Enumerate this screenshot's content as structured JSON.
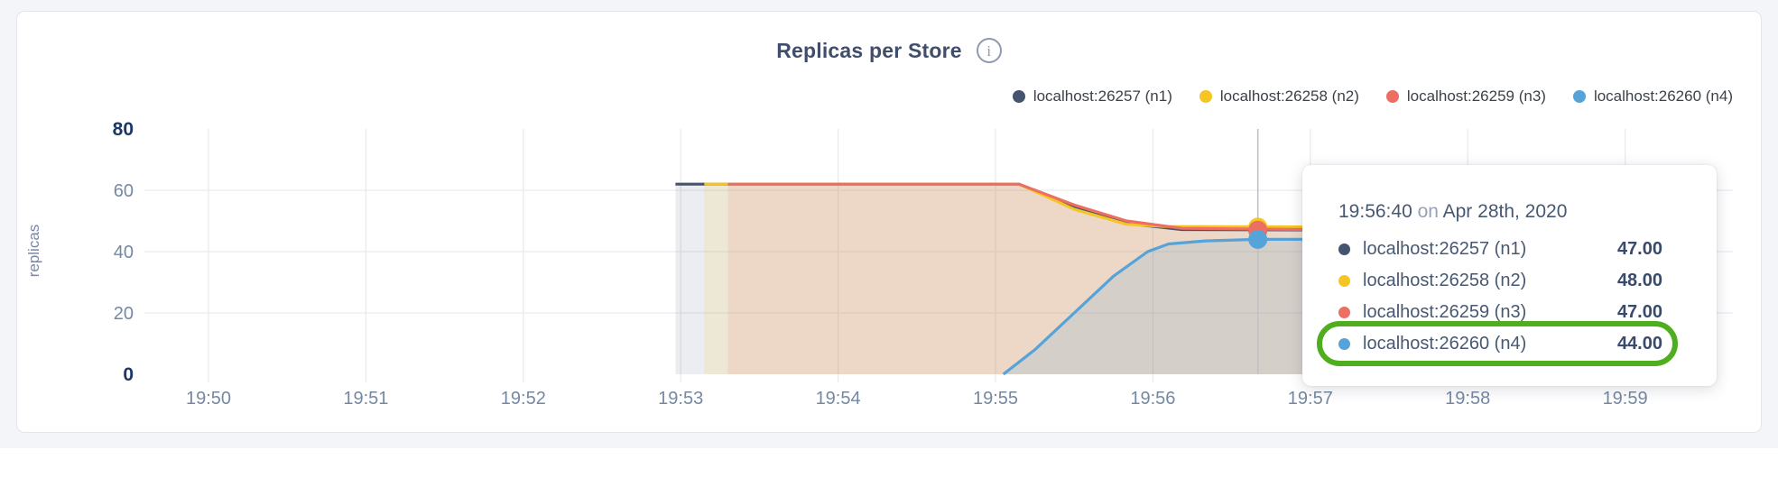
{
  "card": {
    "title": "Replicas per Store",
    "info_icon_glyph": "i"
  },
  "tooltip": {
    "time": "19:56:40",
    "conjunction": " on ",
    "date": "Apr 28th, 2020",
    "rows": [
      {
        "label": "localhost:26257 (n1)",
        "value": "47.00",
        "color": "#44536e"
      },
      {
        "label": "localhost:26258 (n2)",
        "value": "48.00",
        "color": "#f5c623"
      },
      {
        "label": "localhost:26259 (n3)",
        "value": "47.00",
        "color": "#ed6e62"
      },
      {
        "label": "localhost:26260 (n4)",
        "value": "44.00",
        "color": "#55a3d9"
      }
    ],
    "highlighted_row_index": 3,
    "highlight_color": "#4fae1e"
  },
  "chart_data": {
    "type": "area",
    "title": "Replicas per Store",
    "xlabel": "",
    "ylabel": "replicas",
    "ylim": [
      0,
      80
    ],
    "grid": true,
    "legend_position": "top-right",
    "x_unit": "seconds after 19:50:00",
    "x_ticks": [
      {
        "label": "19:50",
        "s": 0
      },
      {
        "label": "19:51",
        "s": 60
      },
      {
        "label": "19:52",
        "s": 120
      },
      {
        "label": "19:53",
        "s": 180
      },
      {
        "label": "19:54",
        "s": 240
      },
      {
        "label": "19:55",
        "s": 300
      },
      {
        "label": "19:56",
        "s": 360
      },
      {
        "label": "19:57",
        "s": 420
      },
      {
        "label": "19:58",
        "s": 480
      },
      {
        "label": "19:59",
        "s": 540
      }
    ],
    "y_ticks": [
      {
        "label": "0",
        "value": 0,
        "bold": true
      },
      {
        "label": "20",
        "value": 20,
        "bold": false
      },
      {
        "label": "40",
        "value": 40,
        "bold": false
      },
      {
        "label": "60",
        "value": 60,
        "bold": false
      },
      {
        "label": "80",
        "value": 80,
        "bold": true
      }
    ],
    "series": [
      {
        "name": "localhost:26257 (n1)",
        "color": "#44536e",
        "fill_opacity": 0.1,
        "points": [
          [
            178,
            62
          ],
          [
            309,
            62
          ],
          [
            330,
            54.5
          ],
          [
            350,
            49.2
          ],
          [
            371,
            47.2
          ],
          [
            443,
            47
          ]
        ]
      },
      {
        "name": "localhost:26258 (n2)",
        "color": "#f5c623",
        "fill_opacity": 0.13,
        "points": [
          [
            189,
            62
          ],
          [
            309,
            62
          ],
          [
            330,
            53.8
          ],
          [
            350,
            48.9
          ],
          [
            365,
            48.2
          ],
          [
            443,
            48
          ]
        ]
      },
      {
        "name": "localhost:26259 (n3)",
        "color": "#ed6e62",
        "fill_opacity": 0.13,
        "points": [
          [
            198,
            62
          ],
          [
            309,
            62
          ],
          [
            330,
            55.2
          ],
          [
            350,
            50
          ],
          [
            371,
            47.6
          ],
          [
            443,
            47
          ]
        ]
      },
      {
        "name": "localhost:26260 (n4)",
        "color": "#55a3d9",
        "fill_opacity": 0.16,
        "points": [
          [
            303,
            0
          ],
          [
            315,
            8
          ],
          [
            330,
            20
          ],
          [
            345,
            32
          ],
          [
            358,
            40
          ],
          [
            366,
            42.5
          ],
          [
            380,
            43.5
          ],
          [
            400,
            44
          ],
          [
            443,
            44
          ]
        ]
      }
    ],
    "hover": {
      "s": 400,
      "time_label": "19:56:40",
      "values": [
        47,
        48,
        47,
        44
      ]
    }
  }
}
